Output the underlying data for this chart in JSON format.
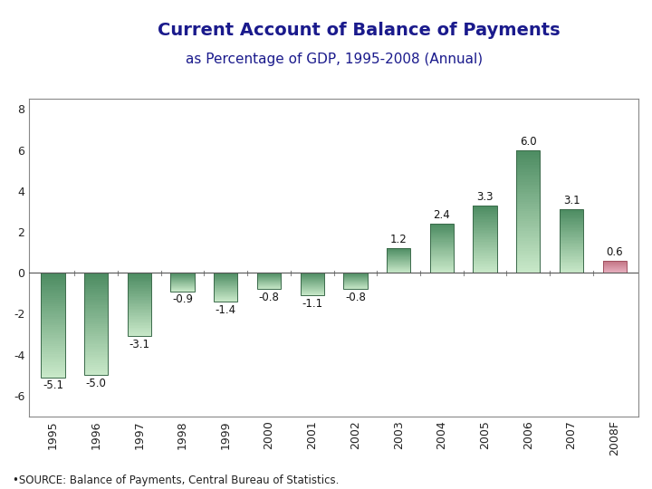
{
  "categories": [
    "1995",
    "1996",
    "1997",
    "1998",
    "1999",
    "2000",
    "2001",
    "2002",
    "2003",
    "2004",
    "2005",
    "2006",
    "2007",
    "2008F"
  ],
  "values": [
    -5.1,
    -5.0,
    -3.1,
    -0.9,
    -1.4,
    -0.8,
    -1.1,
    -0.8,
    1.2,
    2.4,
    3.3,
    6.0,
    3.1,
    0.6
  ],
  "title_line1": "Current Account of Balance of Payments",
  "title_line2": "as Percentage of GDP, 1995-2008 (Annual)",
  "ylim": [
    -7.0,
    8.5
  ],
  "yticks": [
    -6,
    -4,
    -2,
    0,
    2,
    4,
    6,
    8
  ],
  "source_text": "•SOURCE: Balance of Payments, Central Bureau of Statistics.",
  "title_color": "#1a1a8c",
  "background_color": "#ffffff",
  "plot_bg_color": "#ffffff",
  "bar_green_dark": "#4a8a60",
  "bar_green_light": "#c8e8c8",
  "bar_pink_dark": "#c07080",
  "bar_pink_light": "#e8b0c0",
  "tick_mark_color": "#888888",
  "spine_color": "#888888"
}
